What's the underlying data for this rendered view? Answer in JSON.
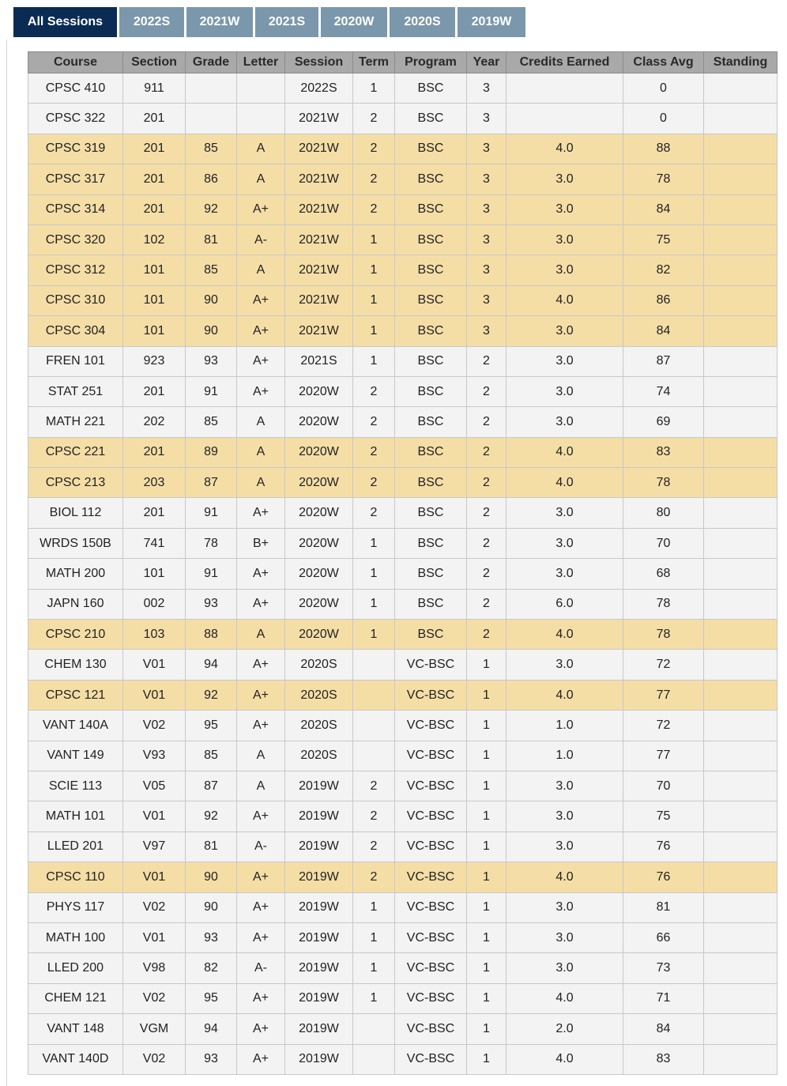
{
  "tabs": [
    "All Sessions",
    "2022S",
    "2021W",
    "2021S",
    "2020W",
    "2020S",
    "2019W"
  ],
  "active_tab": "All Sessions",
  "highlight_color": "#f5dea6",
  "columns": [
    "Course",
    "Section",
    "Grade",
    "Letter",
    "Session",
    "Term",
    "Program",
    "Year",
    "Credits Earned",
    "Class Avg",
    "Standing"
  ],
  "rows": [
    {
      "course": "CPSC 410",
      "section": "911",
      "grade": "",
      "letter": "",
      "session": "2022S",
      "term": "1",
      "program": "BSC",
      "year": "3",
      "credits": "",
      "class_avg": "0",
      "standing": "",
      "highlighted": false
    },
    {
      "course": "CPSC 322",
      "section": "201",
      "grade": "",
      "letter": "",
      "session": "2021W",
      "term": "2",
      "program": "BSC",
      "year": "3",
      "credits": "",
      "class_avg": "0",
      "standing": "",
      "highlighted": false
    },
    {
      "course": "CPSC 319",
      "section": "201",
      "grade": "85",
      "letter": "A",
      "session": "2021W",
      "term": "2",
      "program": "BSC",
      "year": "3",
      "credits": "4.0",
      "class_avg": "88",
      "standing": "",
      "highlighted": true
    },
    {
      "course": "CPSC 317",
      "section": "201",
      "grade": "86",
      "letter": "A",
      "session": "2021W",
      "term": "2",
      "program": "BSC",
      "year": "3",
      "credits": "3.0",
      "class_avg": "78",
      "standing": "",
      "highlighted": true
    },
    {
      "course": "CPSC 314",
      "section": "201",
      "grade": "92",
      "letter": "A+",
      "session": "2021W",
      "term": "2",
      "program": "BSC",
      "year": "3",
      "credits": "3.0",
      "class_avg": "84",
      "standing": "",
      "highlighted": true
    },
    {
      "course": "CPSC 320",
      "section": "102",
      "grade": "81",
      "letter": "A-",
      "session": "2021W",
      "term": "1",
      "program": "BSC",
      "year": "3",
      "credits": "3.0",
      "class_avg": "75",
      "standing": "",
      "highlighted": true
    },
    {
      "course": "CPSC 312",
      "section": "101",
      "grade": "85",
      "letter": "A",
      "session": "2021W",
      "term": "1",
      "program": "BSC",
      "year": "3",
      "credits": "3.0",
      "class_avg": "82",
      "standing": "",
      "highlighted": true
    },
    {
      "course": "CPSC 310",
      "section": "101",
      "grade": "90",
      "letter": "A+",
      "session": "2021W",
      "term": "1",
      "program": "BSC",
      "year": "3",
      "credits": "4.0",
      "class_avg": "86",
      "standing": "",
      "highlighted": true
    },
    {
      "course": "CPSC 304",
      "section": "101",
      "grade": "90",
      "letter": "A+",
      "session": "2021W",
      "term": "1",
      "program": "BSC",
      "year": "3",
      "credits": "3.0",
      "class_avg": "84",
      "standing": "",
      "highlighted": true
    },
    {
      "course": "FREN 101",
      "section": "923",
      "grade": "93",
      "letter": "A+",
      "session": "2021S",
      "term": "1",
      "program": "BSC",
      "year": "2",
      "credits": "3.0",
      "class_avg": "87",
      "standing": "",
      "highlighted": false
    },
    {
      "course": "STAT 251",
      "section": "201",
      "grade": "91",
      "letter": "A+",
      "session": "2020W",
      "term": "2",
      "program": "BSC",
      "year": "2",
      "credits": "3.0",
      "class_avg": "74",
      "standing": "",
      "highlighted": false
    },
    {
      "course": "MATH 221",
      "section": "202",
      "grade": "85",
      "letter": "A",
      "session": "2020W",
      "term": "2",
      "program": "BSC",
      "year": "2",
      "credits": "3.0",
      "class_avg": "69",
      "standing": "",
      "highlighted": false
    },
    {
      "course": "CPSC 221",
      "section": "201",
      "grade": "89",
      "letter": "A",
      "session": "2020W",
      "term": "2",
      "program": "BSC",
      "year": "2",
      "credits": "4.0",
      "class_avg": "83",
      "standing": "",
      "highlighted": true
    },
    {
      "course": "CPSC 213",
      "section": "203",
      "grade": "87",
      "letter": "A",
      "session": "2020W",
      "term": "2",
      "program": "BSC",
      "year": "2",
      "credits": "4.0",
      "class_avg": "78",
      "standing": "",
      "highlighted": true
    },
    {
      "course": "BIOL 112",
      "section": "201",
      "grade": "91",
      "letter": "A+",
      "session": "2020W",
      "term": "2",
      "program": "BSC",
      "year": "2",
      "credits": "3.0",
      "class_avg": "80",
      "standing": "",
      "highlighted": false
    },
    {
      "course": "WRDS 150B",
      "section": "741",
      "grade": "78",
      "letter": "B+",
      "session": "2020W",
      "term": "1",
      "program": "BSC",
      "year": "2",
      "credits": "3.0",
      "class_avg": "70",
      "standing": "",
      "highlighted": false
    },
    {
      "course": "MATH 200",
      "section": "101",
      "grade": "91",
      "letter": "A+",
      "session": "2020W",
      "term": "1",
      "program": "BSC",
      "year": "2",
      "credits": "3.0",
      "class_avg": "68",
      "standing": "",
      "highlighted": false
    },
    {
      "course": "JAPN 160",
      "section": "002",
      "grade": "93",
      "letter": "A+",
      "session": "2020W",
      "term": "1",
      "program": "BSC",
      "year": "2",
      "credits": "6.0",
      "class_avg": "78",
      "standing": "",
      "highlighted": false
    },
    {
      "course": "CPSC 210",
      "section": "103",
      "grade": "88",
      "letter": "A",
      "session": "2020W",
      "term": "1",
      "program": "BSC",
      "year": "2",
      "credits": "4.0",
      "class_avg": "78",
      "standing": "",
      "highlighted": true
    },
    {
      "course": "CHEM 130",
      "section": "V01",
      "grade": "94",
      "letter": "A+",
      "session": "2020S",
      "term": "",
      "program": "VC-BSC",
      "year": "1",
      "credits": "3.0",
      "class_avg": "72",
      "standing": "",
      "highlighted": false
    },
    {
      "course": "CPSC 121",
      "section": "V01",
      "grade": "92",
      "letter": "A+",
      "session": "2020S",
      "term": "",
      "program": "VC-BSC",
      "year": "1",
      "credits": "4.0",
      "class_avg": "77",
      "standing": "",
      "highlighted": true
    },
    {
      "course": "VANT 140A",
      "section": "V02",
      "grade": "95",
      "letter": "A+",
      "session": "2020S",
      "term": "",
      "program": "VC-BSC",
      "year": "1",
      "credits": "1.0",
      "class_avg": "72",
      "standing": "",
      "highlighted": false
    },
    {
      "course": "VANT 149",
      "section": "V93",
      "grade": "85",
      "letter": "A",
      "session": "2020S",
      "term": "",
      "program": "VC-BSC",
      "year": "1",
      "credits": "1.0",
      "class_avg": "77",
      "standing": "",
      "highlighted": false
    },
    {
      "course": "SCIE 113",
      "section": "V05",
      "grade": "87",
      "letter": "A",
      "session": "2019W",
      "term": "2",
      "program": "VC-BSC",
      "year": "1",
      "credits": "3.0",
      "class_avg": "70",
      "standing": "",
      "highlighted": false
    },
    {
      "course": "MATH 101",
      "section": "V01",
      "grade": "92",
      "letter": "A+",
      "session": "2019W",
      "term": "2",
      "program": "VC-BSC",
      "year": "1",
      "credits": "3.0",
      "class_avg": "75",
      "standing": "",
      "highlighted": false
    },
    {
      "course": "LLED 201",
      "section": "V97",
      "grade": "81",
      "letter": "A-",
      "session": "2019W",
      "term": "2",
      "program": "VC-BSC",
      "year": "1",
      "credits": "3.0",
      "class_avg": "76",
      "standing": "",
      "highlighted": false
    },
    {
      "course": "CPSC 110",
      "section": "V01",
      "grade": "90",
      "letter": "A+",
      "session": "2019W",
      "term": "2",
      "program": "VC-BSC",
      "year": "1",
      "credits": "4.0",
      "class_avg": "76",
      "standing": "",
      "highlighted": true
    },
    {
      "course": "PHYS 117",
      "section": "V02",
      "grade": "90",
      "letter": "A+",
      "session": "2019W",
      "term": "1",
      "program": "VC-BSC",
      "year": "1",
      "credits": "3.0",
      "class_avg": "81",
      "standing": "",
      "highlighted": false
    },
    {
      "course": "MATH 100",
      "section": "V01",
      "grade": "93",
      "letter": "A+",
      "session": "2019W",
      "term": "1",
      "program": "VC-BSC",
      "year": "1",
      "credits": "3.0",
      "class_avg": "66",
      "standing": "",
      "highlighted": false
    },
    {
      "course": "LLED 200",
      "section": "V98",
      "grade": "82",
      "letter": "A-",
      "session": "2019W",
      "term": "1",
      "program": "VC-BSC",
      "year": "1",
      "credits": "3.0",
      "class_avg": "73",
      "standing": "",
      "highlighted": false
    },
    {
      "course": "CHEM 121",
      "section": "V02",
      "grade": "95",
      "letter": "A+",
      "session": "2019W",
      "term": "1",
      "program": "VC-BSC",
      "year": "1",
      "credits": "4.0",
      "class_avg": "71",
      "standing": "",
      "highlighted": false
    },
    {
      "course": "VANT 148",
      "section": "VGM",
      "grade": "94",
      "letter": "A+",
      "session": "2019W",
      "term": "",
      "program": "VC-BSC",
      "year": "1",
      "credits": "2.0",
      "class_avg": "84",
      "standing": "",
      "highlighted": false
    },
    {
      "course": "VANT 140D",
      "section": "V02",
      "grade": "93",
      "letter": "A+",
      "session": "2019W",
      "term": "",
      "program": "VC-BSC",
      "year": "1",
      "credits": "4.0",
      "class_avg": "83",
      "standing": "",
      "highlighted": false
    }
  ]
}
